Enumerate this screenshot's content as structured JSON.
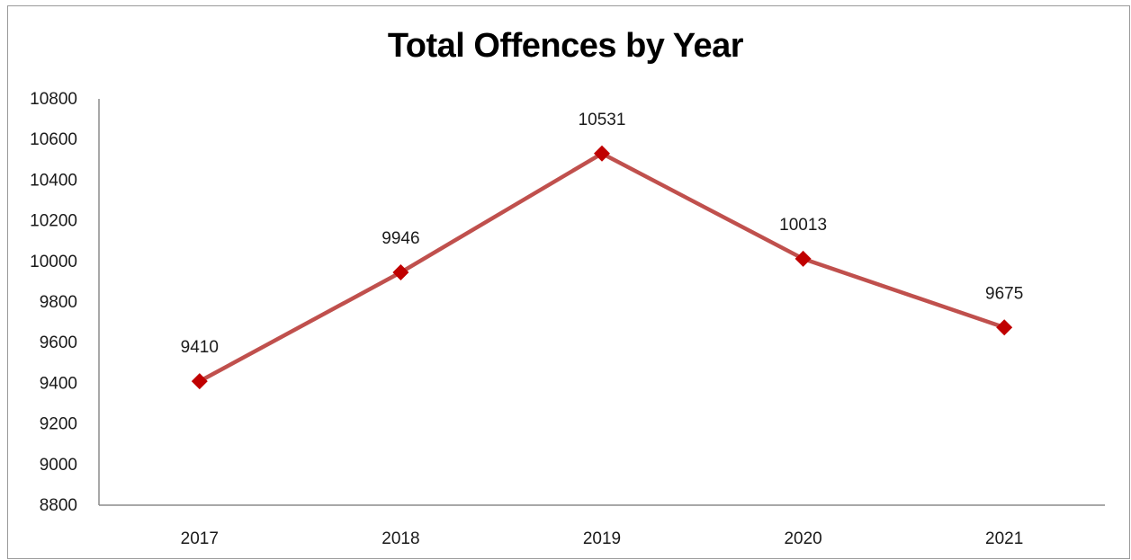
{
  "chart_data": {
    "type": "line",
    "title": "Total Offences by Year",
    "xlabel": "",
    "ylabel": "",
    "categories": [
      "2017",
      "2018",
      "2019",
      "2020",
      "2021"
    ],
    "series": [
      {
        "values": [
          9410,
          9946,
          10531,
          10013,
          9675
        ],
        "data_labels": [
          "9410",
          "9946",
          "10531",
          "10013",
          "9675"
        ]
      }
    ],
    "ylim": [
      8800,
      10800
    ],
    "ytick_step": 200,
    "yticks": [
      "8800",
      "9000",
      "9200",
      "9400",
      "9600",
      "9800",
      "10000",
      "10200",
      "10400",
      "10600",
      "10800"
    ],
    "grid": false,
    "legend": "none",
    "colors": {
      "line": "#c0504d",
      "marker": "#c00000",
      "axis": "#8c8c8c"
    },
    "marker": "diamond"
  }
}
